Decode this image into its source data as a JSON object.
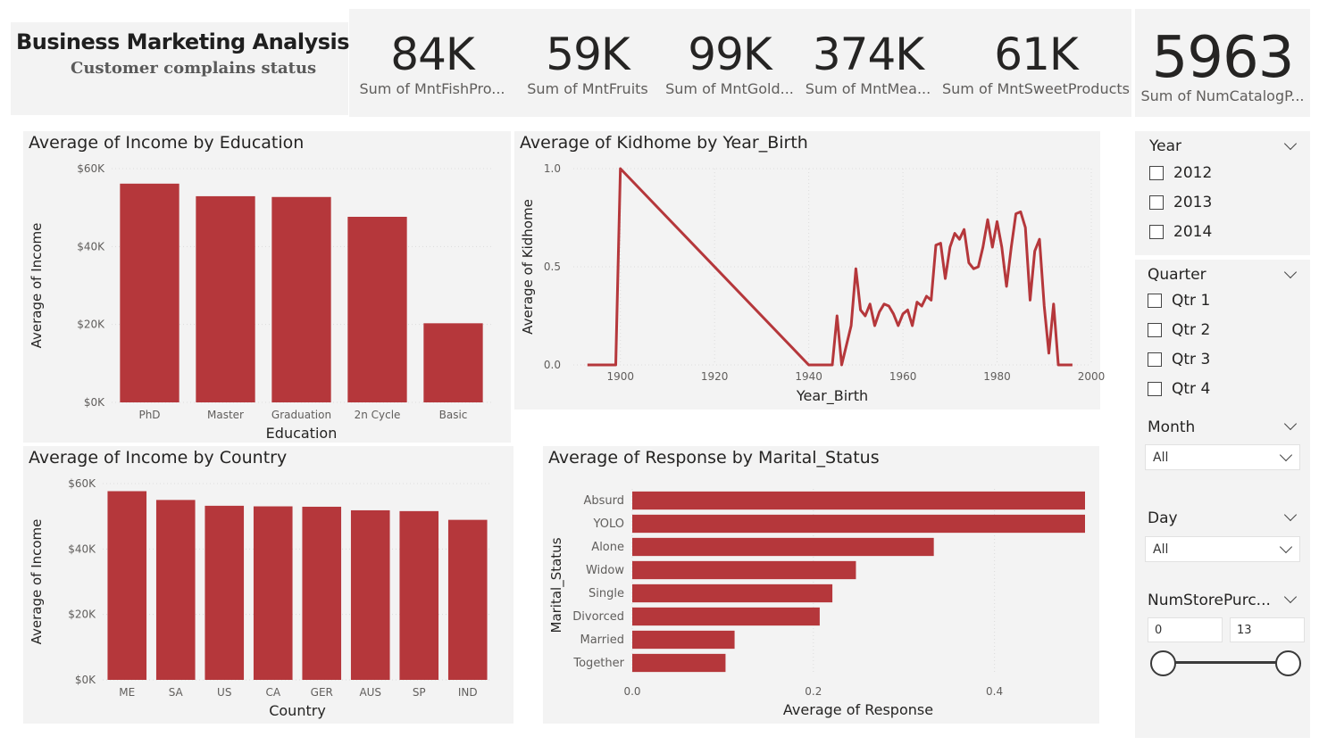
{
  "header": {
    "title": "Business Marketing Analysis",
    "subtitle": "Customer complains status"
  },
  "kpis": [
    {
      "value": "84K",
      "label": "Sum of MntFishPro..."
    },
    {
      "value": "59K",
      "label": "Sum of MntFruits"
    },
    {
      "value": "99K",
      "label": "Sum of MntGold..."
    },
    {
      "value": "374K",
      "label": "Sum of MntMea..."
    },
    {
      "value": "61K",
      "label": "Sum of MntSweetProducts"
    },
    {
      "value": "5963",
      "label": "Sum of NumCatalogP..."
    }
  ],
  "colors": {
    "bar": "#b5373b",
    "panel": "#f3f3f3",
    "grid": "#dcdcdc"
  },
  "chart_data": [
    {
      "id": "income_by_education",
      "type": "bar",
      "title": "Average of Income by Education",
      "xlabel": "Education",
      "ylabel": "Average of Income",
      "categories": [
        "PhD",
        "Master",
        "Graduation",
        "2n Cycle",
        "Basic"
      ],
      "values": [
        56146,
        52918,
        52721,
        47634,
        20306
      ],
      "ylim": [
        0,
        60000
      ],
      "yticks": [
        0,
        20000,
        40000,
        60000
      ],
      "ytick_labels": [
        "$0K",
        "$20K",
        "$40K",
        "$60K"
      ],
      "grid": true
    },
    {
      "id": "kidhome_by_year",
      "type": "line",
      "title": "Average of Kidhome by Year_Birth",
      "xlabel": "Year_Birth",
      "ylabel": "Average of Kidhome",
      "xlim": [
        1890,
        2000
      ],
      "ylim": [
        0,
        1
      ],
      "xticks": [
        1900,
        1920,
        1940,
        1960,
        1980,
        2000
      ],
      "yticks": [
        0,
        0.5,
        1
      ],
      "ytick_labels": [
        "0.0",
        "0.5",
        "1.0"
      ],
      "x": [
        1893,
        1899,
        1900,
        1940,
        1941,
        1943,
        1944,
        1945,
        1946,
        1947,
        1948,
        1949,
        1950,
        1951,
        1952,
        1953,
        1954,
        1955,
        1956,
        1957,
        1958,
        1959,
        1960,
        1961,
        1962,
        1963,
        1964,
        1965,
        1966,
        1967,
        1968,
        1969,
        1970,
        1971,
        1972,
        1973,
        1974,
        1975,
        1976,
        1977,
        1978,
        1979,
        1980,
        1981,
        1982,
        1983,
        1984,
        1985,
        1986,
        1987,
        1988,
        1989,
        1990,
        1991,
        1992,
        1993,
        1994,
        1995,
        1996
      ],
      "y": [
        0,
        0,
        1,
        0,
        0,
        0,
        0,
        0,
        0.25,
        0,
        0.1,
        0.2,
        0.49,
        0.28,
        0.25,
        0.31,
        0.2,
        0.27,
        0.31,
        0.3,
        0.26,
        0.2,
        0.26,
        0.28,
        0.2,
        0.32,
        0.3,
        0.35,
        0.33,
        0.61,
        0.62,
        0.44,
        0.6,
        0.67,
        0.64,
        0.69,
        0.52,
        0.49,
        0.5,
        0.6,
        0.74,
        0.6,
        0.73,
        0.6,
        0.4,
        0.6,
        0.77,
        0.78,
        0.7,
        0.33,
        0.58,
        0.64,
        0.3,
        0.06,
        0.31,
        0,
        0,
        0,
        0
      ],
      "grid": true
    },
    {
      "id": "income_by_country",
      "type": "bar",
      "title": "Average of Income by Country",
      "xlabel": "Country",
      "ylabel": "Average of Income",
      "categories": [
        "ME",
        "SA",
        "US",
        "CA",
        "GER",
        "AUS",
        "SP",
        "IND"
      ],
      "values": [
        57680,
        54994,
        53216,
        53037,
        52922,
        51833,
        51583,
        48918
      ],
      "ylim": [
        0,
        60000
      ],
      "yticks": [
        0,
        20000,
        40000,
        60000
      ],
      "ytick_labels": [
        "$0K",
        "$20K",
        "$40K",
        "$60K"
      ],
      "grid": true
    },
    {
      "id": "response_by_marital",
      "type": "bar",
      "orientation": "horizontal",
      "title": "Average of Response by Marital_Status",
      "xlabel": "Average of Response",
      "ylabel": "Marital_Status",
      "categories": [
        "Absurd",
        "YOLO",
        "Alone",
        "Widow",
        "Single",
        "Divorced",
        "Married",
        "Together"
      ],
      "values": [
        0.5,
        0.5,
        0.333,
        0.247,
        0.221,
        0.207,
        0.113,
        0.103
      ],
      "xlim": [
        0,
        0.5
      ],
      "xticks": [
        0,
        0.2,
        0.4
      ],
      "xtick_labels": [
        "0.0",
        "0.2",
        "0.4"
      ],
      "grid": true
    }
  ],
  "slicers": {
    "year": {
      "title": "Year",
      "options": [
        "2012",
        "2013",
        "2014"
      ]
    },
    "quarter": {
      "title": "Quarter",
      "options": [
        "Qtr 1",
        "Qtr 2",
        "Qtr 3",
        "Qtr 4"
      ]
    },
    "month": {
      "title": "Month",
      "value": "All"
    },
    "day": {
      "title": "Day",
      "value": "All"
    },
    "numstore": {
      "title": "NumStorePurc...",
      "min": "0",
      "max": "13"
    }
  }
}
